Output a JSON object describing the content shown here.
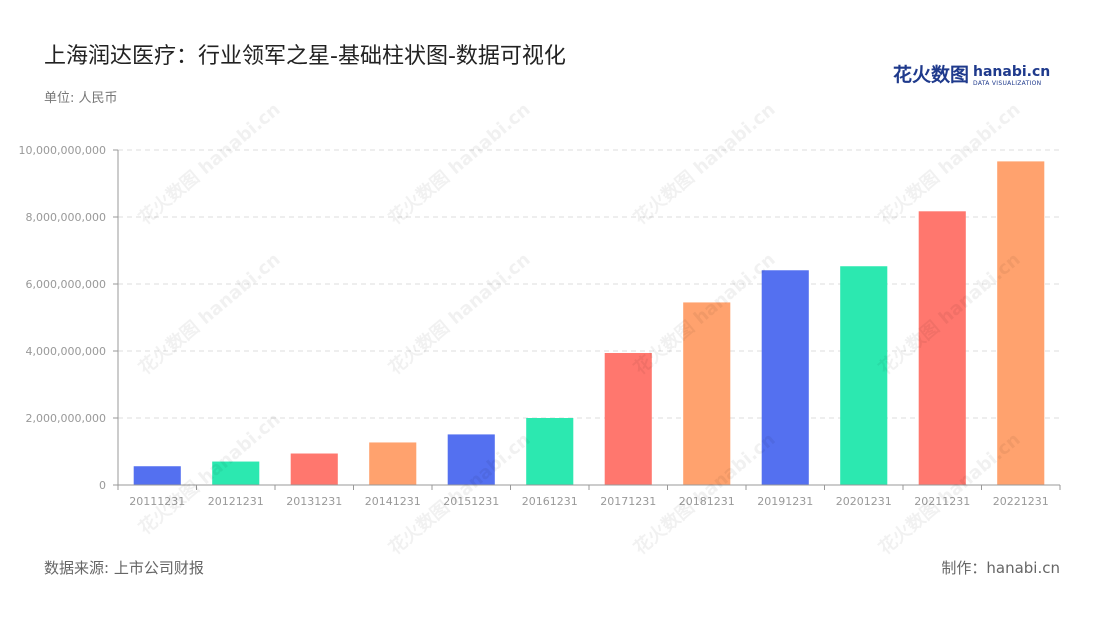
{
  "header": {
    "title": "上海润达医疗：行业领军之星-基础柱状图-数据可视化",
    "unit": "单位: 人民币"
  },
  "logo": {
    "cn": "花火数图",
    "en": "hanabi.cn",
    "sub": "DATA VISUALIZATION"
  },
  "footer": {
    "source": "数据来源: 上市公司财报",
    "credit": "制作：hanabi.cn"
  },
  "watermark_text": "花火数图 hanabi.cn",
  "colors": {
    "palette": [
      "#5470f0",
      "#2ce8b0",
      "#ff776e",
      "#ffa26e"
    ],
    "grid": "#dddddd",
    "axis": "#999999",
    "tick_text": "#999999"
  },
  "chart_data": {
    "type": "bar",
    "categories": [
      "20111231",
      "20121231",
      "20131231",
      "20141231",
      "20151231",
      "20161231",
      "20171231",
      "20181231",
      "20191231",
      "20201231",
      "20211231",
      "20221231"
    ],
    "values": [
      560000000,
      700000000,
      940000000,
      1270000000,
      1510000000,
      2000000000,
      3940000000,
      5450000000,
      6410000000,
      6530000000,
      8170000000,
      9660000000
    ],
    "bar_colors": [
      "#5470f0",
      "#2ce8b0",
      "#ff776e",
      "#ffa26e",
      "#5470f0",
      "#2ce8b0",
      "#ff776e",
      "#ffa26e",
      "#5470f0",
      "#2ce8b0",
      "#ff776e",
      "#ffa26e"
    ],
    "ylim": [
      0,
      10000000000
    ],
    "yticks": [
      0,
      2000000000,
      4000000000,
      6000000000,
      8000000000,
      10000000000
    ],
    "ytick_labels": [
      "0",
      "2,000,000,000",
      "4,000,000,000",
      "6,000,000,000",
      "8,000,000,000",
      "10,000,000,000"
    ],
    "grid": true,
    "title": "上海润达医疗：行业领军之星-基础柱状图-数据可视化",
    "xlabel": "",
    "ylabel": ""
  }
}
